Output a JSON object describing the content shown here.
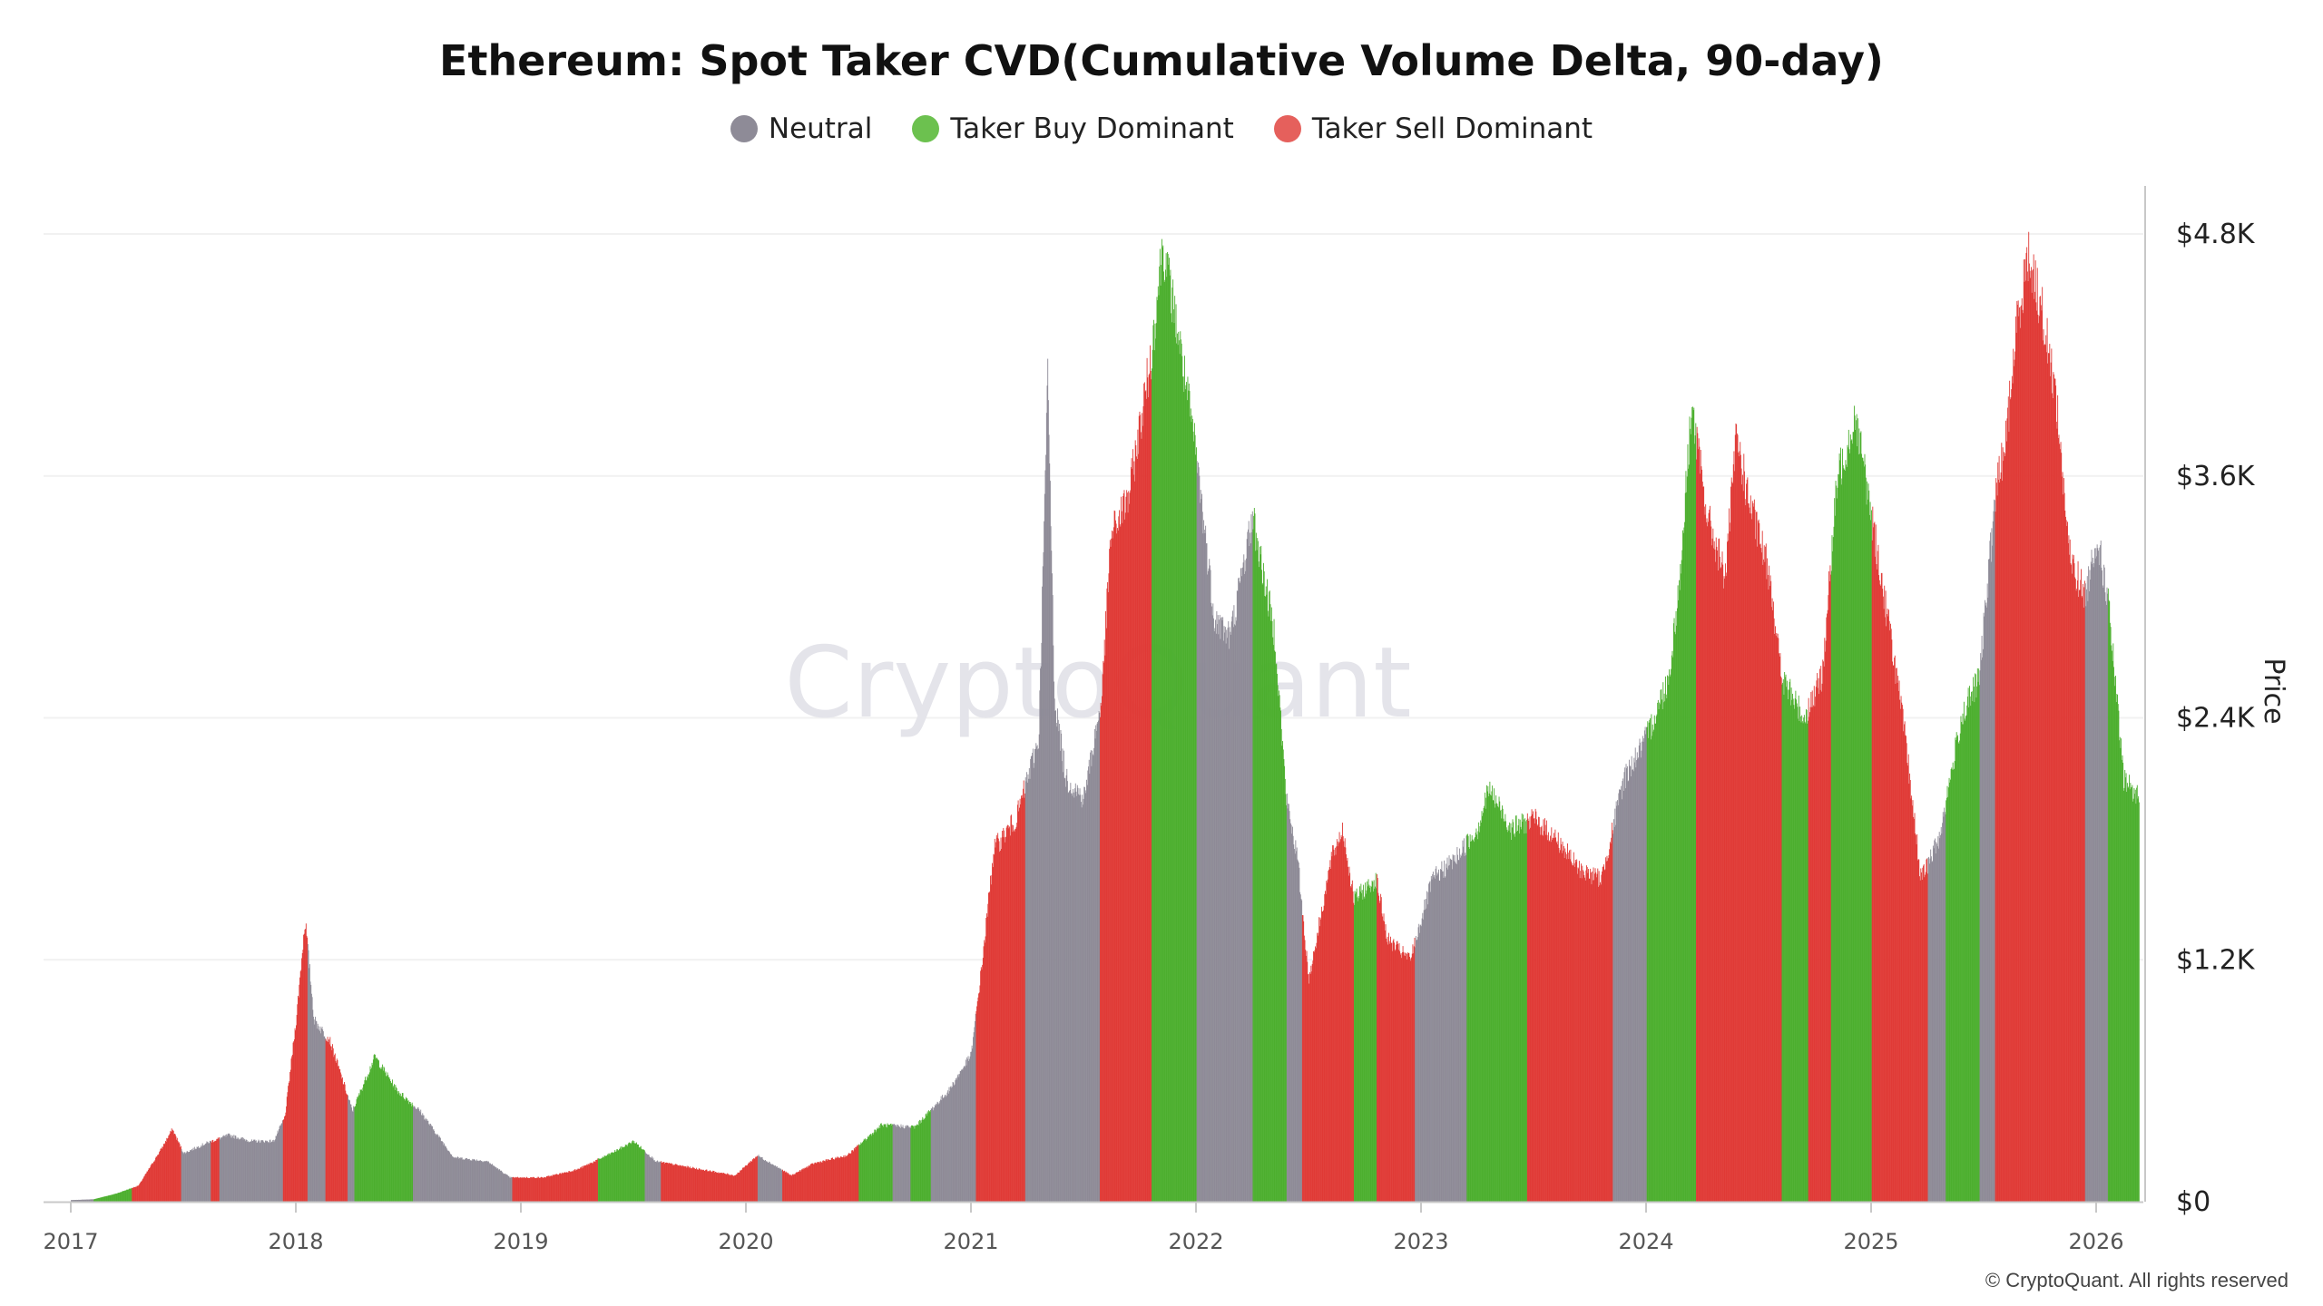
{
  "chart_data": {
    "type": "bar",
    "title": "Ethereum: Spot Taker CVD(Cumulative Volume Delta, 90-day)",
    "ylabel": "Price",
    "ylim": [
      0,
      4800
    ],
    "y_ticks": [
      "$0",
      "$1.2K",
      "$2.4K",
      "$3.6K",
      "$4.8K"
    ],
    "y_tick_values": [
      0,
      1200,
      2400,
      3600,
      4800
    ],
    "x_ticks": [
      "2017",
      "2018",
      "2019",
      "2020",
      "2021",
      "2022",
      "2023",
      "2024",
      "2025",
      "2026"
    ],
    "x_tick_values": [
      2017,
      2018,
      2019,
      2020,
      2021,
      2022,
      2023,
      2024,
      2025,
      2026
    ],
    "xlim": [
      2017.0,
      2026.25
    ],
    "grid": true,
    "legend_position": "top-center",
    "series": [
      {
        "name": "Neutral",
        "color": "#8e8b97"
      },
      {
        "name": "Taker Buy Dominant",
        "color": "#4caf2e"
      },
      {
        "name": "Taker Sell Dominant",
        "color": "#e03a36"
      }
    ],
    "price_points": [
      [
        2017.0,
        8
      ],
      [
        2017.1,
        12
      ],
      [
        2017.2,
        40
      ],
      [
        2017.3,
        80
      ],
      [
        2017.4,
        260
      ],
      [
        2017.45,
        360
      ],
      [
        2017.5,
        240
      ],
      [
        2017.6,
        290
      ],
      [
        2017.7,
        330
      ],
      [
        2017.8,
        300
      ],
      [
        2017.9,
        300
      ],
      [
        2017.95,
        420
      ],
      [
        2018.0,
        900
      ],
      [
        2018.04,
        1400
      ],
      [
        2018.08,
        900
      ],
      [
        2018.15,
        800
      ],
      [
        2018.25,
        450
      ],
      [
        2018.35,
        720
      ],
      [
        2018.45,
        550
      ],
      [
        2018.55,
        450
      ],
      [
        2018.7,
        220
      ],
      [
        2018.85,
        200
      ],
      [
        2018.95,
        120
      ],
      [
        2019.1,
        120
      ],
      [
        2019.25,
        160
      ],
      [
        2019.4,
        240
      ],
      [
        2019.5,
        300
      ],
      [
        2019.6,
        200
      ],
      [
        2019.7,
        180
      ],
      [
        2019.85,
        150
      ],
      [
        2019.95,
        130
      ],
      [
        2020.05,
        230
      ],
      [
        2020.2,
        130
      ],
      [
        2020.3,
        190
      ],
      [
        2020.45,
        230
      ],
      [
        2020.6,
        380
      ],
      [
        2020.75,
        370
      ],
      [
        2020.9,
        550
      ],
      [
        2021.0,
        730
      ],
      [
        2021.05,
        1200
      ],
      [
        2021.1,
        1750
      ],
      [
        2021.2,
        1900
      ],
      [
        2021.3,
        2300
      ],
      [
        2021.34,
        4100
      ],
      [
        2021.37,
        2500
      ],
      [
        2021.42,
        2100
      ],
      [
        2021.5,
        2000
      ],
      [
        2021.58,
        2500
      ],
      [
        2021.62,
        3300
      ],
      [
        2021.7,
        3500
      ],
      [
        2021.8,
        4200
      ],
      [
        2021.85,
        4750
      ],
      [
        2021.92,
        4300
      ],
      [
        2022.0,
        3700
      ],
      [
        2022.08,
        2900
      ],
      [
        2022.15,
        2800
      ],
      [
        2022.25,
        3400
      ],
      [
        2022.35,
        2800
      ],
      [
        2022.4,
        2000
      ],
      [
        2022.45,
        1700
      ],
      [
        2022.5,
        1100
      ],
      [
        2022.6,
        1700
      ],
      [
        2022.65,
        1850
      ],
      [
        2022.7,
        1500
      ],
      [
        2022.8,
        1600
      ],
      [
        2022.85,
        1300
      ],
      [
        2022.95,
        1200
      ],
      [
        2023.05,
        1600
      ],
      [
        2023.15,
        1700
      ],
      [
        2023.25,
        1850
      ],
      [
        2023.3,
        2050
      ],
      [
        2023.4,
        1850
      ],
      [
        2023.5,
        1900
      ],
      [
        2023.6,
        1800
      ],
      [
        2023.7,
        1650
      ],
      [
        2023.8,
        1600
      ],
      [
        2023.9,
        2100
      ],
      [
        2024.0,
        2300
      ],
      [
        2024.1,
        2600
      ],
      [
        2024.15,
        3100
      ],
      [
        2024.2,
        3950
      ],
      [
        2024.27,
        3400
      ],
      [
        2024.35,
        3100
      ],
      [
        2024.4,
        3800
      ],
      [
        2024.45,
        3500
      ],
      [
        2024.55,
        3100
      ],
      [
        2024.6,
        2600
      ],
      [
        2024.7,
        2400
      ],
      [
        2024.78,
        2600
      ],
      [
        2024.85,
        3600
      ],
      [
        2024.93,
        3900
      ],
      [
        2025.0,
        3400
      ],
      [
        2025.1,
        2700
      ],
      [
        2025.15,
        2300
      ],
      [
        2025.22,
        1600
      ],
      [
        2025.3,
        1800
      ],
      [
        2025.4,
        2400
      ],
      [
        2025.48,
        2600
      ],
      [
        2025.55,
        3500
      ],
      [
        2025.6,
        3800
      ],
      [
        2025.65,
        4400
      ],
      [
        2025.7,
        4700
      ],
      [
        2025.76,
        4400
      ],
      [
        2025.82,
        4000
      ],
      [
        2025.88,
        3200
      ],
      [
        2025.95,
        3000
      ],
      [
        2026.0,
        3300
      ],
      [
        2026.05,
        3000
      ],
      [
        2026.12,
        2100
      ],
      [
        2026.19,
        2000
      ]
    ],
    "regimes": [
      [
        2017.0,
        2017.1,
        "neutral"
      ],
      [
        2017.1,
        2017.27,
        "buy"
      ],
      [
        2017.27,
        2017.49,
        "sell"
      ],
      [
        2017.49,
        2017.62,
        "neutral"
      ],
      [
        2017.62,
        2017.66,
        "sell"
      ],
      [
        2017.66,
        2017.94,
        "neutral"
      ],
      [
        2017.94,
        2018.05,
        "sell"
      ],
      [
        2018.05,
        2018.13,
        "neutral"
      ],
      [
        2018.13,
        2018.23,
        "sell"
      ],
      [
        2018.23,
        2018.26,
        "neutral"
      ],
      [
        2018.26,
        2018.52,
        "buy"
      ],
      [
        2018.52,
        2018.96,
        "neutral"
      ],
      [
        2018.96,
        2019.34,
        "sell"
      ],
      [
        2019.34,
        2019.55,
        "buy"
      ],
      [
        2019.55,
        2019.62,
        "neutral"
      ],
      [
        2019.62,
        2020.05,
        "sell"
      ],
      [
        2020.05,
        2020.16,
        "neutral"
      ],
      [
        2020.16,
        2020.5,
        "sell"
      ],
      [
        2020.5,
        2020.65,
        "buy"
      ],
      [
        2020.65,
        2020.73,
        "neutral"
      ],
      [
        2020.73,
        2020.82,
        "buy"
      ],
      [
        2020.82,
        2021.02,
        "neutral"
      ],
      [
        2021.02,
        2021.24,
        "sell"
      ],
      [
        2021.24,
        2021.57,
        "neutral"
      ],
      [
        2021.57,
        2021.8,
        "sell"
      ],
      [
        2021.8,
        2022.0,
        "buy"
      ],
      [
        2022.0,
        2022.25,
        "neutral"
      ],
      [
        2022.25,
        2022.4,
        "buy"
      ],
      [
        2022.4,
        2022.47,
        "neutral"
      ],
      [
        2022.47,
        2022.7,
        "sell"
      ],
      [
        2022.7,
        2022.8,
        "buy"
      ],
      [
        2022.8,
        2022.97,
        "sell"
      ],
      [
        2022.97,
        2023.2,
        "neutral"
      ],
      [
        2023.2,
        2023.47,
        "buy"
      ],
      [
        2023.47,
        2023.85,
        "sell"
      ],
      [
        2023.85,
        2024.0,
        "neutral"
      ],
      [
        2024.0,
        2024.22,
        "buy"
      ],
      [
        2024.22,
        2024.6,
        "sell"
      ],
      [
        2024.6,
        2024.72,
        "buy"
      ],
      [
        2024.72,
        2024.82,
        "sell"
      ],
      [
        2024.82,
        2025.0,
        "buy"
      ],
      [
        2025.0,
        2025.25,
        "sell"
      ],
      [
        2025.25,
        2025.33,
        "neutral"
      ],
      [
        2025.33,
        2025.48,
        "buy"
      ],
      [
        2025.48,
        2025.55,
        "neutral"
      ],
      [
        2025.55,
        2025.95,
        "sell"
      ],
      [
        2025.95,
        2026.05,
        "neutral"
      ],
      [
        2026.05,
        2026.19,
        "buy"
      ]
    ]
  },
  "chart_text": {
    "title": "Ethereum: Spot Taker CVD(Cumulative Volume Delta, 90-day)",
    "legend_neutral": "Neutral",
    "legend_buy": "Taker Buy Dominant",
    "legend_sell": "Taker Sell Dominant",
    "watermark": "CryptoQuant",
    "copyright": "© CryptoQuant. All rights reserved"
  },
  "colors": {
    "neutral": "#8e8b97",
    "buy": "#4caf2e",
    "sell": "#e03a36",
    "grid": "#f1f1f1",
    "axis": "#c8c8c8",
    "watermark": "#e4e4ea"
  }
}
